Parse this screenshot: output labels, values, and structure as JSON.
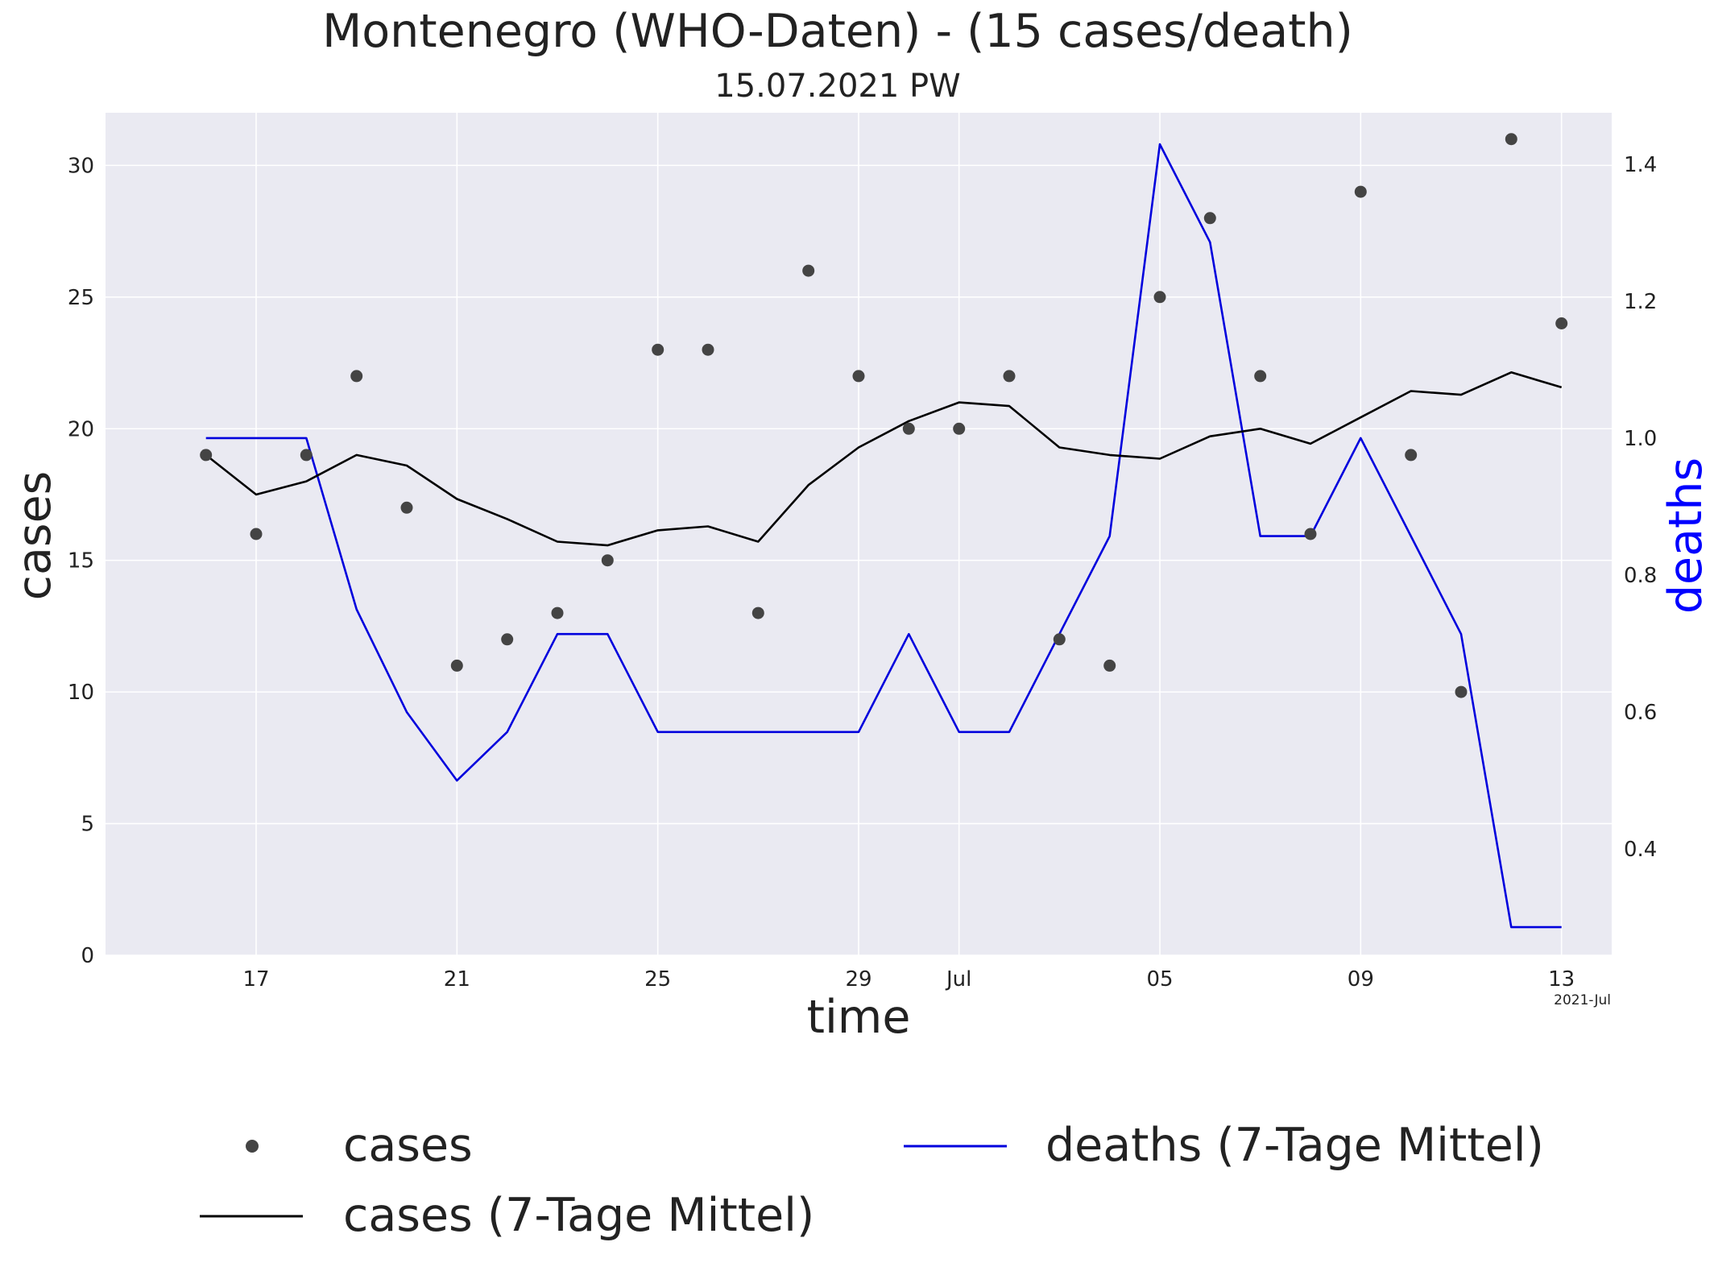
{
  "chart_data": {
    "type": "line",
    "title": "Montenegro (WHO-Daten) - (15 cases/death)",
    "subtitle": "15.07.2021 PW",
    "xlabel": "time",
    "ylabel": "cases",
    "y2label": "deaths",
    "x_offset_label": "2021-Jul",
    "ylim": [
      0,
      32
    ],
    "y2lim": [
      0.245,
      1.475
    ],
    "xlim": [
      "2021-06-14",
      "2021-07-14"
    ],
    "grid": true,
    "y_ticks": [
      "0",
      "5",
      "10",
      "15",
      "20",
      "25",
      "30"
    ],
    "y2_ticks": [
      "0.4",
      "0.6",
      "0.8",
      "1.0",
      "1.2",
      "1.4"
    ],
    "x_ticks": [
      {
        "date": "2021-06-17",
        "label": "17"
      },
      {
        "date": "2021-06-21",
        "label": "21"
      },
      {
        "date": "2021-06-25",
        "label": "25"
      },
      {
        "date": "2021-06-29",
        "label": "29"
      },
      {
        "date": "2021-07-01",
        "label": "Jul"
      },
      {
        "date": "2021-07-05",
        "label": "05"
      },
      {
        "date": "2021-07-09",
        "label": "09"
      },
      {
        "date": "2021-07-13",
        "label": "13"
      }
    ],
    "x": [
      "2021-06-16",
      "2021-06-17",
      "2021-06-18",
      "2021-06-19",
      "2021-06-20",
      "2021-06-21",
      "2021-06-22",
      "2021-06-23",
      "2021-06-24",
      "2021-06-25",
      "2021-06-26",
      "2021-06-27",
      "2021-06-28",
      "2021-06-29",
      "2021-06-30",
      "2021-07-01",
      "2021-07-02",
      "2021-07-03",
      "2021-07-04",
      "2021-07-05",
      "2021-07-06",
      "2021-07-07",
      "2021-07-08",
      "2021-07-09",
      "2021-07-10",
      "2021-07-11",
      "2021-07-12",
      "2021-07-13"
    ],
    "series": [
      {
        "name": "cases",
        "axis": "left",
        "style": "points",
        "color": "#444444",
        "values": [
          19,
          16,
          19,
          22,
          17,
          11,
          12,
          13,
          15,
          23,
          23,
          13,
          26,
          22,
          20,
          20,
          22,
          12,
          11,
          25,
          28,
          22,
          16,
          29,
          19,
          10,
          31,
          24
        ]
      },
      {
        "name": "cases (7-Tage Mittel)",
        "axis": "left",
        "style": "line",
        "color": "#000000",
        "values": [
          19.0,
          17.5,
          18.0,
          19.0,
          18.6,
          17.33,
          16.57,
          15.71,
          15.57,
          16.14,
          16.29,
          15.71,
          17.86,
          19.29,
          20.29,
          21.0,
          20.86,
          19.29,
          19.0,
          18.86,
          19.71,
          20.0,
          19.43,
          20.43,
          21.43,
          21.29,
          22.14,
          21.57
        ]
      },
      {
        "name": "deaths (7-Tage Mittel)",
        "axis": "right",
        "style": "line",
        "color": "#0000dd",
        "values": [
          1.0,
          1.0,
          1.0,
          0.75,
          0.6,
          0.5,
          0.571,
          0.714,
          0.714,
          0.571,
          0.571,
          0.571,
          0.571,
          0.571,
          0.714,
          0.571,
          0.571,
          0.714,
          0.857,
          1.429,
          1.286,
          0.857,
          0.857,
          1.0,
          0.857,
          0.714,
          0.286,
          0.286
        ]
      }
    ],
    "legend": {
      "placement": "bottom",
      "entries": [
        {
          "label": "cases",
          "marker": "point"
        },
        {
          "label": "deaths (7-Tage Mittel)",
          "marker": "line-blue"
        },
        {
          "label": "cases (7-Tage Mittel)",
          "marker": "line-black"
        }
      ]
    },
    "colors": {
      "plot_bg": "#eaeaf2",
      "grid": "#ffffff",
      "deaths_axis_label": "#0000ff"
    }
  }
}
